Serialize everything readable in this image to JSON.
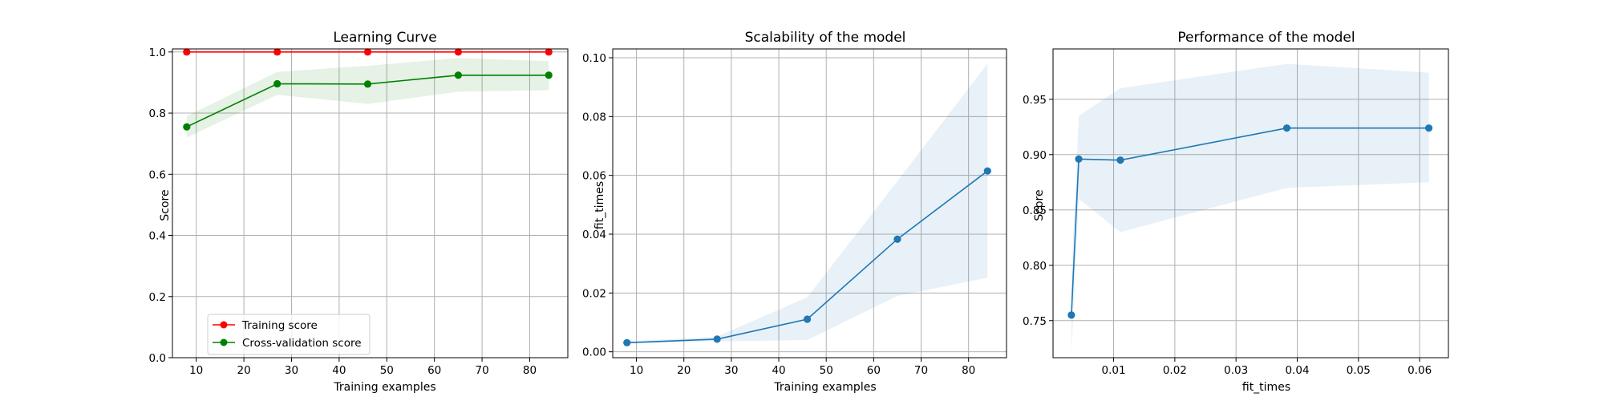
{
  "chart_data": [
    {
      "type": "line",
      "title": "Learning Curve",
      "xlabel": "Training examples",
      "ylabel": "Score",
      "xlim": [
        5,
        88
      ],
      "ylim": [
        0.0,
        1.01
      ],
      "xticks": [
        10,
        20,
        30,
        40,
        50,
        60,
        70,
        80
      ],
      "yticks": [
        0.0,
        0.2,
        0.4,
        0.6,
        0.8,
        1.0
      ],
      "ytick_labels": [
        "0.0",
        "0.2",
        "0.4",
        "0.6",
        "0.8",
        "1.0"
      ],
      "grid": true,
      "legend_position": "lower-left",
      "x": [
        8,
        27,
        46,
        65,
        84
      ],
      "series": [
        {
          "name": "Training score",
          "color": "#ff0000",
          "values": [
            1.0,
            1.0,
            1.0,
            1.0,
            1.0
          ],
          "band_lower": [
            1.0,
            1.0,
            1.0,
            1.0,
            1.0
          ],
          "band_upper": [
            1.0,
            1.0,
            1.0,
            1.0,
            1.0
          ]
        },
        {
          "name": "Cross-validation score",
          "color": "#008000",
          "values": [
            0.755,
            0.896,
            0.895,
            0.924,
            0.924
          ],
          "band_lower": [
            0.72,
            0.86,
            0.83,
            0.87,
            0.875
          ],
          "band_upper": [
            0.79,
            0.935,
            0.955,
            0.98,
            0.97
          ]
        }
      ]
    },
    {
      "type": "line",
      "title": "Scalability of the model",
      "xlabel": "Training examples",
      "ylabel": "fit_times",
      "xlim": [
        5,
        88
      ],
      "ylim": [
        -0.002,
        0.103
      ],
      "xticks": [
        10,
        20,
        30,
        40,
        50,
        60,
        70,
        80
      ],
      "yticks": [
        0.0,
        0.02,
        0.04,
        0.06,
        0.08,
        0.1
      ],
      "ytick_labels": [
        "0.00",
        "0.02",
        "0.04",
        "0.06",
        "0.08",
        "0.10"
      ],
      "grid": true,
      "x": [
        8,
        27,
        46,
        65,
        84
      ],
      "series": [
        {
          "name": "",
          "color": "#1f77b4",
          "values": [
            0.0031,
            0.0043,
            0.0111,
            0.0383,
            0.0615
          ],
          "band_lower": [
            0.0028,
            0.0035,
            0.004,
            0.019,
            0.0252
          ],
          "band_upper": [
            0.0035,
            0.0052,
            0.0185,
            0.058,
            0.098
          ]
        }
      ]
    },
    {
      "type": "line",
      "title": "Performance of the model",
      "xlabel": "fit_times",
      "ylabel": "Score",
      "xlim": [
        0.0001,
        0.0647
      ],
      "ylim": [
        0.7165,
        0.9955
      ],
      "xticks": [
        0.01,
        0.02,
        0.03,
        0.04,
        0.05,
        0.06
      ],
      "xtick_labels": [
        "0.01",
        "0.02",
        "0.03",
        "0.04",
        "0.05",
        "0.06"
      ],
      "yticks": [
        0.75,
        0.8,
        0.85,
        0.9,
        0.95
      ],
      "ytick_labels": [
        "0.75",
        "0.80",
        "0.85",
        "0.90",
        "0.95"
      ],
      "grid": true,
      "x": [
        0.0031,
        0.0043,
        0.0111,
        0.0383,
        0.0615
      ],
      "series": [
        {
          "name": "",
          "color": "#1f77b4",
          "values": [
            0.755,
            0.896,
            0.895,
            0.924,
            0.924
          ],
          "band_lower": [
            0.72,
            0.86,
            0.83,
            0.87,
            0.875
          ],
          "band_upper": [
            0.79,
            0.935,
            0.96,
            0.982,
            0.974
          ]
        }
      ]
    }
  ]
}
